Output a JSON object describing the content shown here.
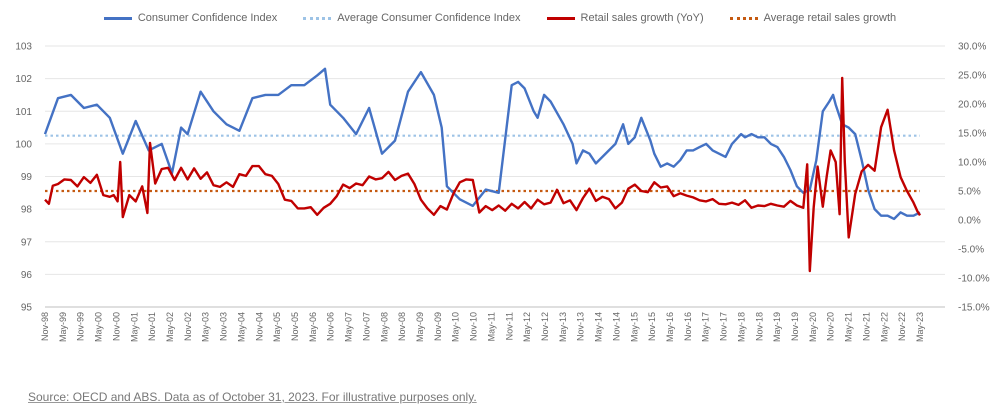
{
  "legend": {
    "cci": "Consumer Confidence Index",
    "cci_avg": "Average Consumer Confidence Index",
    "retail": "Retail sales growth (YoY)",
    "retail_avg": "Average retail sales growth"
  },
  "source": "Source: OECD and ABS. Data as of October 31, 2023. For illustrative purposes only.",
  "colors": {
    "cci": "#4472C4",
    "cci_avg": "#9DC3E6",
    "retail": "#C00000",
    "retail_avg": "#C55A11"
  },
  "chart_data": {
    "type": "line",
    "x_ticks": [
      "Nov-98",
      "May-99",
      "Nov-99",
      "May-00",
      "Nov-00",
      "May-01",
      "Nov-01",
      "May-02",
      "Nov-02",
      "May-03",
      "Nov-03",
      "May-04",
      "Nov-04",
      "May-05",
      "Nov-05",
      "May-06",
      "Nov-06",
      "May-07",
      "Nov-07",
      "May-08",
      "Nov-08",
      "May-09",
      "Nov-09",
      "May-10",
      "Nov-10",
      "May-11",
      "Nov-11",
      "May-12",
      "Nov-12",
      "May-13",
      "Nov-13",
      "May-14",
      "Nov-14",
      "May-15",
      "Nov-15",
      "May-16",
      "Nov-16",
      "May-17",
      "Nov-17",
      "May-18",
      "Nov-18",
      "May-19",
      "Nov-19",
      "May-20",
      "Nov-20",
      "May-21",
      "Nov-21",
      "May-22",
      "Nov-22",
      "May-23"
    ],
    "y_left": {
      "range": [
        95,
        103
      ],
      "ticks": [
        "95",
        "96",
        "97",
        "98",
        "99",
        "100",
        "101",
        "102",
        "103"
      ]
    },
    "y_right": {
      "range": [
        -15,
        30
      ],
      "ticks": [
        "-15.0%",
        "-10.0%",
        "-5.0%",
        "0.0%",
        "5.0%",
        "10.0%",
        "15.0%",
        "20.0%",
        "25.0%",
        "30.0%"
      ]
    },
    "series": [
      {
        "name": "Consumer Confidence Index",
        "axis": "left",
        "style": "solid",
        "points": [
          [
            0,
            100.3
          ],
          [
            1,
            101.4
          ],
          [
            2,
            101.5
          ],
          [
            3,
            101.1
          ],
          [
            4,
            101.2
          ],
          [
            5,
            100.8
          ],
          [
            6,
            99.7
          ],
          [
            7,
            100.7
          ],
          [
            8,
            99.8
          ],
          [
            9,
            100.0
          ],
          [
            9.8,
            99.1
          ],
          [
            10.5,
            100.5
          ],
          [
            11,
            100.3
          ],
          [
            12,
            101.6
          ],
          [
            13,
            101.0
          ],
          [
            14,
            100.6
          ],
          [
            14.5,
            100.5
          ],
          [
            15,
            100.4
          ],
          [
            16,
            101.4
          ],
          [
            17,
            101.5
          ],
          [
            18,
            101.5
          ],
          [
            19,
            101.8
          ],
          [
            20,
            101.8
          ],
          [
            21,
            102.1
          ],
          [
            21.6,
            102.3
          ],
          [
            22,
            101.2
          ],
          [
            23,
            100.8
          ],
          [
            24,
            100.3
          ],
          [
            25,
            101.1
          ],
          [
            26,
            99.7
          ],
          [
            27,
            100.1
          ],
          [
            28,
            101.6
          ],
          [
            29,
            102.2
          ],
          [
            30,
            101.5
          ],
          [
            30.6,
            100.5
          ],
          [
            31,
            98.7
          ],
          [
            32,
            98.3
          ],
          [
            33,
            98.1
          ],
          [
            34,
            98.6
          ],
          [
            35,
            98.5
          ],
          [
            36,
            101.8
          ],
          [
            36.5,
            101.9
          ],
          [
            37,
            101.7
          ],
          [
            37.7,
            101.0
          ],
          [
            38,
            100.8
          ],
          [
            38.5,
            101.5
          ],
          [
            39,
            101.3
          ],
          [
            40,
            100.6
          ],
          [
            40.7,
            100.0
          ],
          [
            41,
            99.4
          ],
          [
            41.5,
            99.8
          ],
          [
            42,
            99.7
          ],
          [
            42.5,
            99.4
          ],
          [
            43,
            99.6
          ],
          [
            44,
            100.0
          ],
          [
            44.6,
            100.6
          ],
          [
            45,
            100.0
          ],
          [
            45.5,
            100.2
          ],
          [
            46,
            100.8
          ],
          [
            46.7,
            100.1
          ],
          [
            47,
            99.7
          ],
          [
            47.5,
            99.3
          ],
          [
            48,
            99.4
          ],
          [
            48.5,
            99.3
          ],
          [
            49,
            99.5
          ],
          [
            49.5,
            99.8
          ],
          [
            50,
            99.8
          ],
          [
            50.5,
            99.9
          ],
          [
            51,
            100.0
          ],
          [
            51.5,
            99.8
          ],
          [
            52,
            99.7
          ],
          [
            52.5,
            99.6
          ],
          [
            53,
            100.0
          ],
          [
            53.7,
            100.3
          ],
          [
            54,
            100.2
          ],
          [
            54.5,
            100.3
          ],
          [
            55,
            100.2
          ],
          [
            55.5,
            100.2
          ],
          [
            56,
            100.0
          ],
          [
            56.5,
            99.9
          ],
          [
            57,
            99.6
          ],
          [
            57.5,
            99.2
          ],
          [
            58,
            98.7
          ],
          [
            58.5,
            98.5
          ],
          [
            59,
            98.6
          ],
          [
            59.5,
            99.5
          ],
          [
            60,
            101.0
          ],
          [
            60.5,
            101.3
          ],
          [
            60.8,
            101.5
          ],
          [
            61,
            101.2
          ],
          [
            61.5,
            100.6
          ],
          [
            62,
            100.5
          ],
          [
            62.5,
            100.3
          ],
          [
            63,
            99.5
          ],
          [
            63.5,
            98.6
          ],
          [
            64,
            98.0
          ],
          [
            64.5,
            97.8
          ],
          [
            65,
            97.8
          ],
          [
            65.5,
            97.7
          ],
          [
            66,
            97.9
          ],
          [
            66.5,
            97.8
          ],
          [
            67,
            97.8
          ],
          [
            67.5,
            97.9
          ]
        ]
      },
      {
        "name": "Average Consumer Confidence Index",
        "axis": "left",
        "style": "dotted",
        "points": [
          [
            0,
            100.25
          ],
          [
            67.5,
            100.25
          ]
        ]
      },
      {
        "name": "Retail sales growth (YoY)",
        "axis": "right",
        "style": "solid",
        "points": [
          [
            0,
            3.5
          ],
          [
            0.3,
            2.8
          ],
          [
            0.6,
            5.9
          ],
          [
            1,
            6.2
          ],
          [
            1.5,
            7.0
          ],
          [
            2,
            6.9
          ],
          [
            2.5,
            5.8
          ],
          [
            3,
            7.4
          ],
          [
            3.5,
            6.4
          ],
          [
            4,
            7.8
          ],
          [
            4.5,
            4.3
          ],
          [
            5,
            4.0
          ],
          [
            5.3,
            4.3
          ],
          [
            5.6,
            3.2
          ],
          [
            5.8,
            10.0
          ],
          [
            6,
            0.5
          ],
          [
            6.5,
            4.3
          ],
          [
            7,
            3.2
          ],
          [
            7.5,
            5.8
          ],
          [
            7.9,
            1.2
          ],
          [
            8.1,
            13.3
          ],
          [
            8.5,
            6.3
          ],
          [
            9,
            8.8
          ],
          [
            9.5,
            9.0
          ],
          [
            10,
            6.9
          ],
          [
            10.5,
            9.0
          ],
          [
            11,
            7.0
          ],
          [
            11.5,
            8.9
          ],
          [
            12,
            7.1
          ],
          [
            12.5,
            8.2
          ],
          [
            13,
            6.0
          ],
          [
            13.5,
            5.7
          ],
          [
            14,
            6.5
          ],
          [
            14.5,
            5.7
          ],
          [
            15,
            7.9
          ],
          [
            15.5,
            7.6
          ],
          [
            16,
            9.3
          ],
          [
            16.5,
            9.3
          ],
          [
            17,
            7.9
          ],
          [
            17.5,
            7.6
          ],
          [
            18,
            6.2
          ],
          [
            18.5,
            3.5
          ],
          [
            19,
            3.3
          ],
          [
            19.5,
            2.0
          ],
          [
            20,
            2.0
          ],
          [
            20.5,
            2.2
          ],
          [
            21,
            0.9
          ],
          [
            21.5,
            2.1
          ],
          [
            22,
            2.8
          ],
          [
            22.5,
            4.1
          ],
          [
            23,
            6.1
          ],
          [
            23.5,
            5.5
          ],
          [
            24,
            6.3
          ],
          [
            24.5,
            6.0
          ],
          [
            25,
            7.5
          ],
          [
            25.5,
            7.0
          ],
          [
            26,
            7.2
          ],
          [
            26.5,
            8.3
          ],
          [
            27,
            6.9
          ],
          [
            27.5,
            7.6
          ],
          [
            28,
            8.0
          ],
          [
            28.5,
            6.2
          ],
          [
            29,
            3.5
          ],
          [
            29.5,
            2.0
          ],
          [
            30,
            0.9
          ],
          [
            30.5,
            2.4
          ],
          [
            31,
            1.8
          ],
          [
            31.5,
            4.5
          ],
          [
            32,
            6.5
          ],
          [
            32.5,
            7.0
          ],
          [
            33,
            6.9
          ],
          [
            33.5,
            1.3
          ],
          [
            34,
            2.4
          ],
          [
            34.5,
            1.7
          ],
          [
            35,
            2.5
          ],
          [
            35.5,
            1.6
          ],
          [
            36,
            2.8
          ],
          [
            36.5,
            2.0
          ],
          [
            37,
            3.1
          ],
          [
            37.5,
            2.0
          ],
          [
            38,
            3.5
          ],
          [
            38.5,
            2.7
          ],
          [
            39,
            3.0
          ],
          [
            39.5,
            5.2
          ],
          [
            40,
            2.9
          ],
          [
            40.5,
            3.4
          ],
          [
            41,
            1.7
          ],
          [
            41.5,
            3.8
          ],
          [
            42,
            5.4
          ],
          [
            42.5,
            3.3
          ],
          [
            43,
            4.0
          ],
          [
            43.5,
            3.6
          ],
          [
            44,
            2.0
          ],
          [
            44.5,
            3.0
          ],
          [
            45,
            5.4
          ],
          [
            45.5,
            6.1
          ],
          [
            46,
            5.0
          ],
          [
            46.5,
            4.8
          ],
          [
            47,
            6.5
          ],
          [
            47.5,
            5.6
          ],
          [
            48,
            5.8
          ],
          [
            48.5,
            4.1
          ],
          [
            49,
            4.6
          ],
          [
            49.5,
            4.2
          ],
          [
            50,
            3.9
          ],
          [
            50.5,
            3.4
          ],
          [
            51,
            3.2
          ],
          [
            51.5,
            3.6
          ],
          [
            52,
            2.8
          ],
          [
            52.5,
            2.7
          ],
          [
            53,
            3.0
          ],
          [
            53.5,
            2.6
          ],
          [
            54,
            3.4
          ],
          [
            54.5,
            2.1
          ],
          [
            55,
            2.5
          ],
          [
            55.5,
            2.4
          ],
          [
            56,
            2.8
          ],
          [
            56.5,
            2.5
          ],
          [
            57,
            2.3
          ],
          [
            57.5,
            3.3
          ],
          [
            58,
            2.5
          ],
          [
            58.5,
            2.1
          ],
          [
            58.8,
            9.6
          ],
          [
            59,
            -8.8
          ],
          [
            59.3,
            2.2
          ],
          [
            59.6,
            9.2
          ],
          [
            60,
            2.3
          ],
          [
            60.3,
            7.5
          ],
          [
            60.6,
            12.0
          ],
          [
            61,
            10.0
          ],
          [
            61.3,
            1.0
          ],
          [
            61.5,
            24.5
          ],
          [
            61.7,
            10.0
          ],
          [
            62,
            -3.0
          ],
          [
            62.5,
            4.5
          ],
          [
            63,
            8.4
          ],
          [
            63.5,
            9.5
          ],
          [
            64,
            8.5
          ],
          [
            64.5,
            16.0
          ],
          [
            65,
            19.0
          ],
          [
            65.5,
            12.0
          ],
          [
            66,
            7.4
          ],
          [
            66.5,
            5.0
          ],
          [
            67,
            3.0
          ],
          [
            67.3,
            1.5
          ],
          [
            67.5,
            0.8
          ]
        ]
      },
      {
        "name": "Average retail sales growth",
        "axis": "right",
        "style": "dotted",
        "points": [
          [
            0,
            5.0
          ],
          [
            67.5,
            5.0
          ]
        ]
      }
    ]
  }
}
